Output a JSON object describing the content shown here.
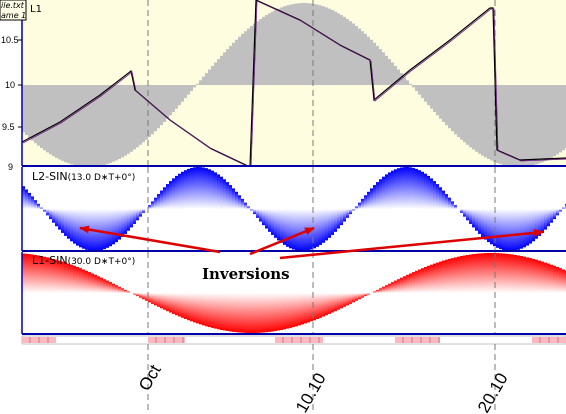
{
  "file_tag": {
    "line1": "ile.txt",
    "line2": "ame 1"
  },
  "pane_top": {
    "label": "L1",
    "y_ticks": [
      "10.5",
      "10",
      "9.5",
      "9"
    ]
  },
  "pane_mid": {
    "label_prefix": "L2-SIN",
    "label_formula": "(13.0 D∗T+0°)"
  },
  "pane_bot": {
    "label_prefix": "L1-SIN",
    "label_formula": "(30.0 D∗T+0°)"
  },
  "annotation": "Inversions",
  "x_ticks": [
    "Oct",
    "10.10",
    "20.10"
  ],
  "colors": {
    "panel_bg": "#fffde0",
    "grey_band": "#c0c0c0",
    "blue": "#0000ff",
    "red": "#ff0000",
    "axis": "#0000aa",
    "arrow": "#dd0000",
    "line": "#000000",
    "marker_band": "#ffb8c0"
  },
  "chart_data": [
    {
      "type": "line",
      "title": "L1",
      "ylim": [
        9,
        10.7
      ],
      "y_ticks": [
        10.5,
        10,
        9.5,
        9
      ],
      "series": []
    },
    {
      "type": "area",
      "title": "L2-SIN(13.0 D∗T+0°)",
      "period_days": 13.0,
      "phase_deg": 0
    },
    {
      "type": "area",
      "title": "L1-SIN(30.0 D∗T+0°)",
      "period_days": 30.0,
      "phase_deg": 0
    }
  ]
}
